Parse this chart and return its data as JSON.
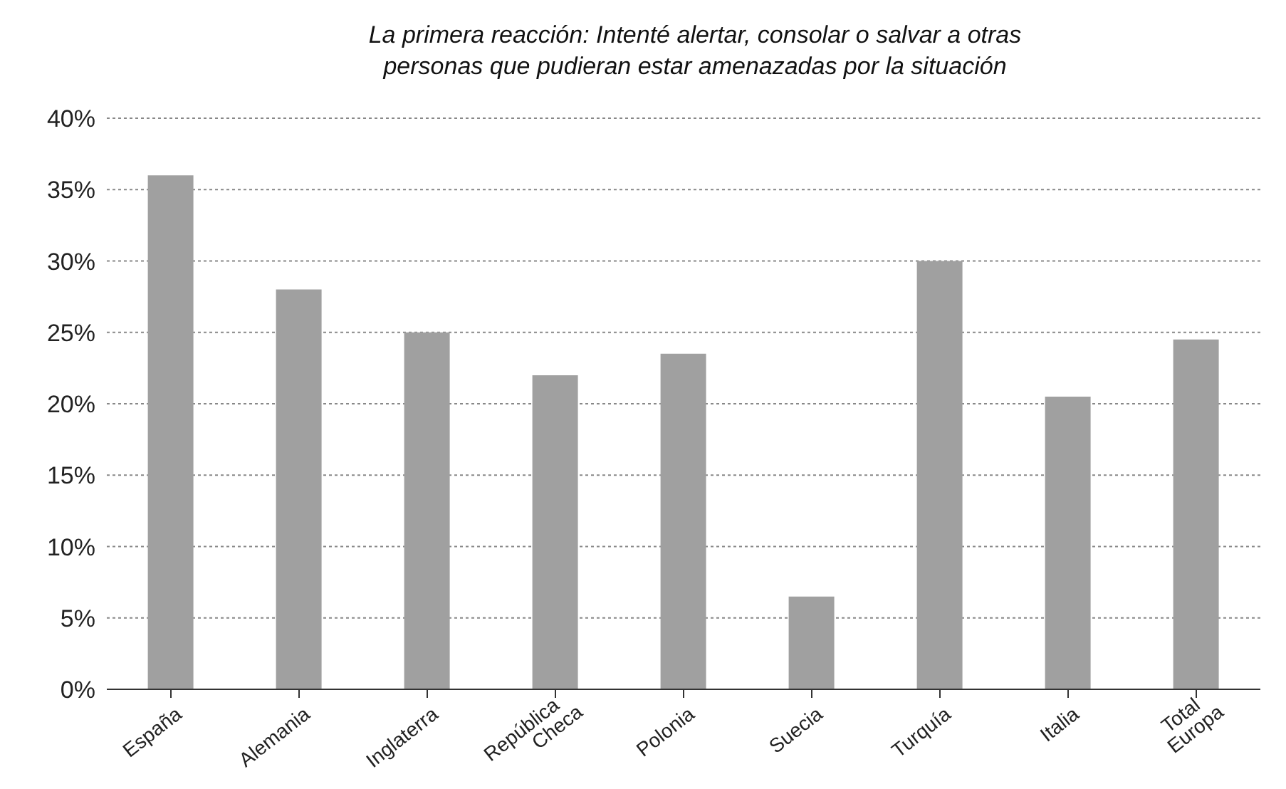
{
  "chart_data": {
    "type": "bar",
    "title": "La primera reacción: Intenté alertar, consolar o salvar a otras personas que pudieran estar amenazadas por la situación",
    "categories": [
      "España",
      "Alemania",
      "Inglaterra",
      "República Checa",
      "Polonia",
      "Suecia",
      "Turquía",
      "Italia",
      "Total Europa"
    ],
    "values": [
      36,
      28,
      25,
      22,
      23.5,
      6.5,
      30,
      20.5,
      24.5
    ],
    "color": "#a0a0a0",
    "ylim": [
      0,
      40
    ],
    "yticks": [
      {
        "value": 0,
        "label": "0%"
      },
      {
        "value": 5,
        "label": "5%"
      },
      {
        "value": 10,
        "label": "10%"
      },
      {
        "value": 15,
        "label": "15%"
      },
      {
        "value": 20,
        "label": "20%"
      },
      {
        "value": 25,
        "label": "25%"
      },
      {
        "value": 30,
        "label": "30%"
      },
      {
        "value": 35,
        "label": "35%"
      },
      {
        "value": 40,
        "label": "40%"
      }
    ],
    "grid": "y"
  }
}
